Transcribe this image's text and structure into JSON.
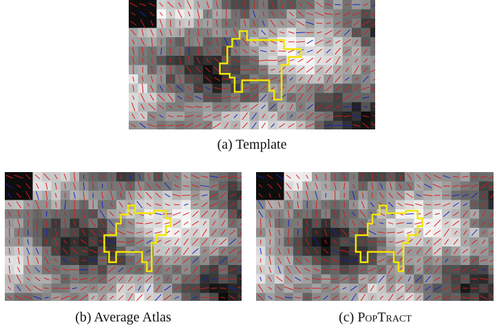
{
  "figure": {
    "panels": [
      {
        "label": "(a)",
        "caption": "Template"
      },
      {
        "label": "(b)",
        "caption": "Average Atlas"
      },
      {
        "label": "(c)",
        "caption": "PopTract"
      }
    ]
  }
}
